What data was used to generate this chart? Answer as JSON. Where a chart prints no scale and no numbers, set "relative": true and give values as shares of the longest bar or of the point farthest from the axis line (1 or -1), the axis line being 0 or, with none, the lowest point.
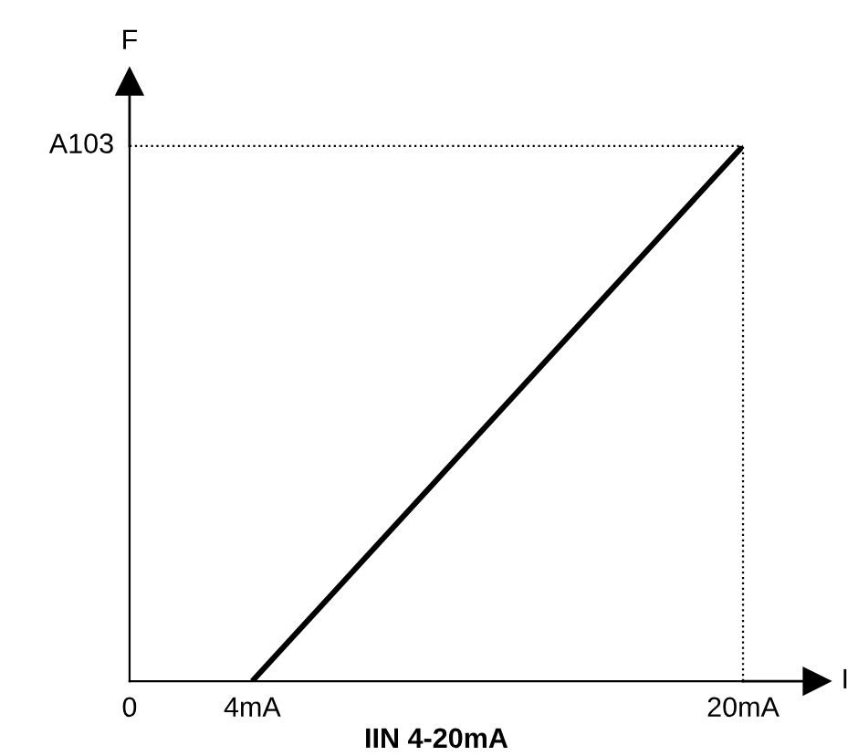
{
  "chart_data": {
    "type": "line",
    "relative": true,
    "xlabel": "IIN 4-20mA",
    "ylabel": "F",
    "annotations": [
      "I"
    ],
    "xlim": [
      0,
      20
    ],
    "xticks": [
      {
        "value": 0,
        "label": "0"
      },
      {
        "value": 4,
        "label": "4mA"
      },
      {
        "value": 20,
        "label": "20mA"
      }
    ],
    "series": [
      {
        "color": "#000000",
        "x": [
          4,
          20
        ],
        "values": [
          0,
          1
        ]
      }
    ],
    "ref_lines": [
      {
        "axis": "y",
        "value": 1,
        "label": "A103",
        "line_style": "dotted",
        "color": "#000000"
      },
      {
        "axis": "x",
        "value": 20,
        "label": null,
        "line_style": "dotted",
        "color": "#000000"
      }
    ],
    "grid": false,
    "legend": false,
    "marker": "none",
    "line_style": "solid"
  }
}
